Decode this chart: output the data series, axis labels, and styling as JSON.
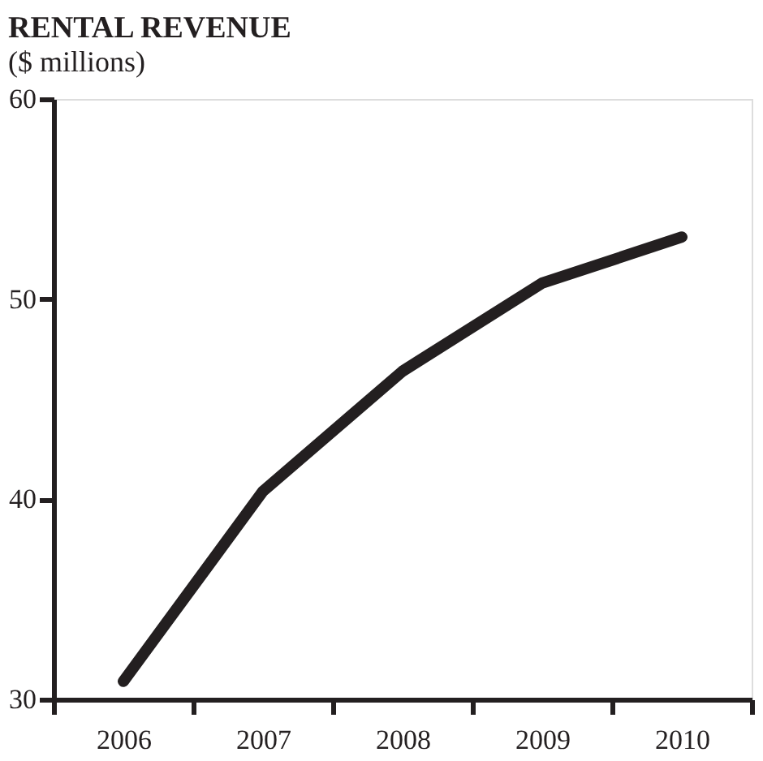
{
  "chart_data": {
    "type": "line",
    "title": "RENTAL REVENUE",
    "subtitle": "($ millions)",
    "categories": [
      "2006",
      "2007",
      "2008",
      "2009",
      "2010"
    ],
    "series": [
      {
        "color": "#231f20",
        "values": [
          30.9,
          40.4,
          46.4,
          50.8,
          53.1
        ]
      }
    ],
    "ylim": [
      30,
      60
    ],
    "yticks": [
      30,
      40,
      50,
      60
    ],
    "grid": false,
    "legend": false,
    "marker": "none",
    "line_style": "solid"
  }
}
